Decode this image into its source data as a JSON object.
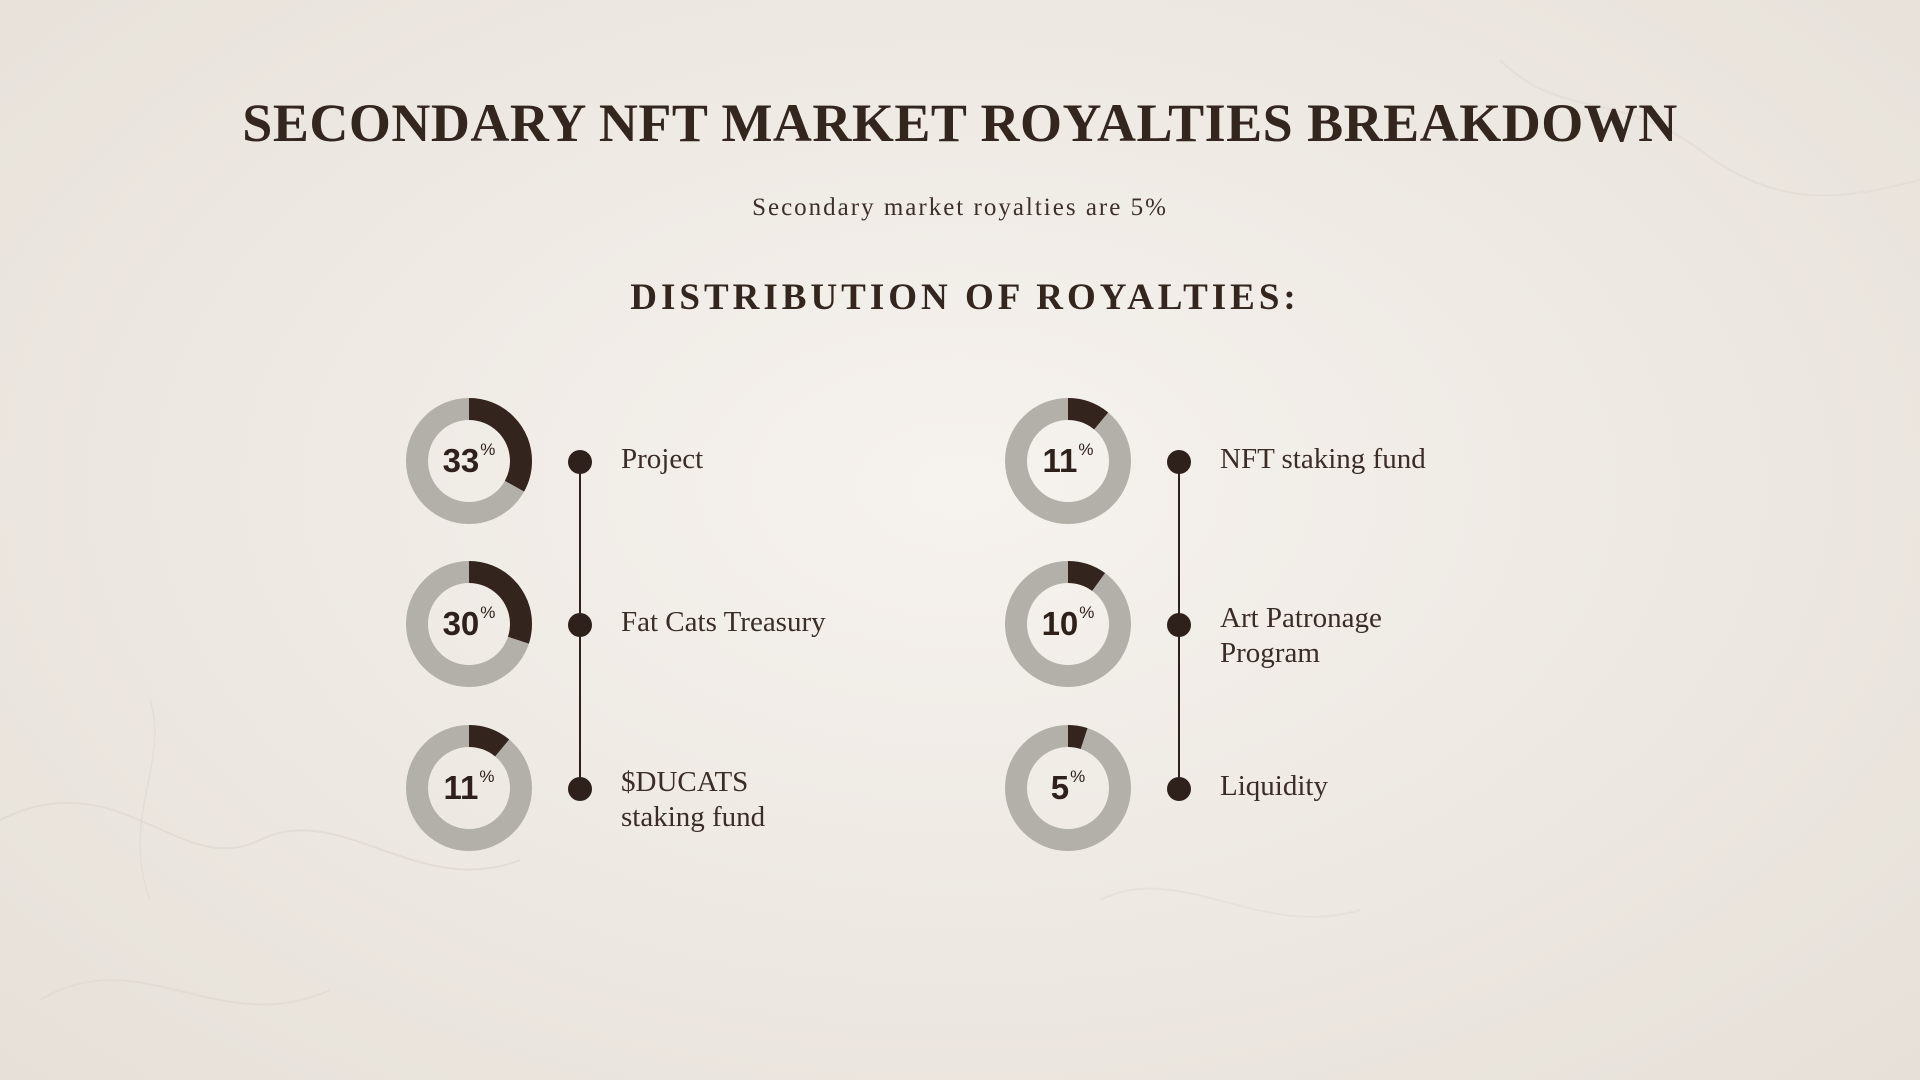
{
  "title": "SECONDARY NFT MARKET ROYALTIES BREAKDOWN",
  "subtitle": "Secondary market royalties are 5%",
  "section_heading": "DISTRIBUTION OF ROYALTIES:",
  "colors": {
    "background": "#efeae4",
    "text": "#33261f",
    "ring_track": "#b3afa9",
    "ring_fill": "#33241e",
    "timeline": "#2e211c"
  },
  "percent_symbol": "%",
  "distribution": {
    "left": [
      {
        "value": 33,
        "value_text": "33",
        "label": "Project"
      },
      {
        "value": 30,
        "value_text": "30",
        "label": "Fat Cats Treasury"
      },
      {
        "value": 11,
        "value_text": "11",
        "label": "$DUCATS staking fund"
      }
    ],
    "right": [
      {
        "value": 11,
        "value_text": "11",
        "label": "NFT staking fund"
      },
      {
        "value": 10,
        "value_text": "10",
        "label": "Art Patronage Program"
      },
      {
        "value": 5,
        "value_text": "5",
        "label": "Liquidity"
      }
    ]
  }
}
